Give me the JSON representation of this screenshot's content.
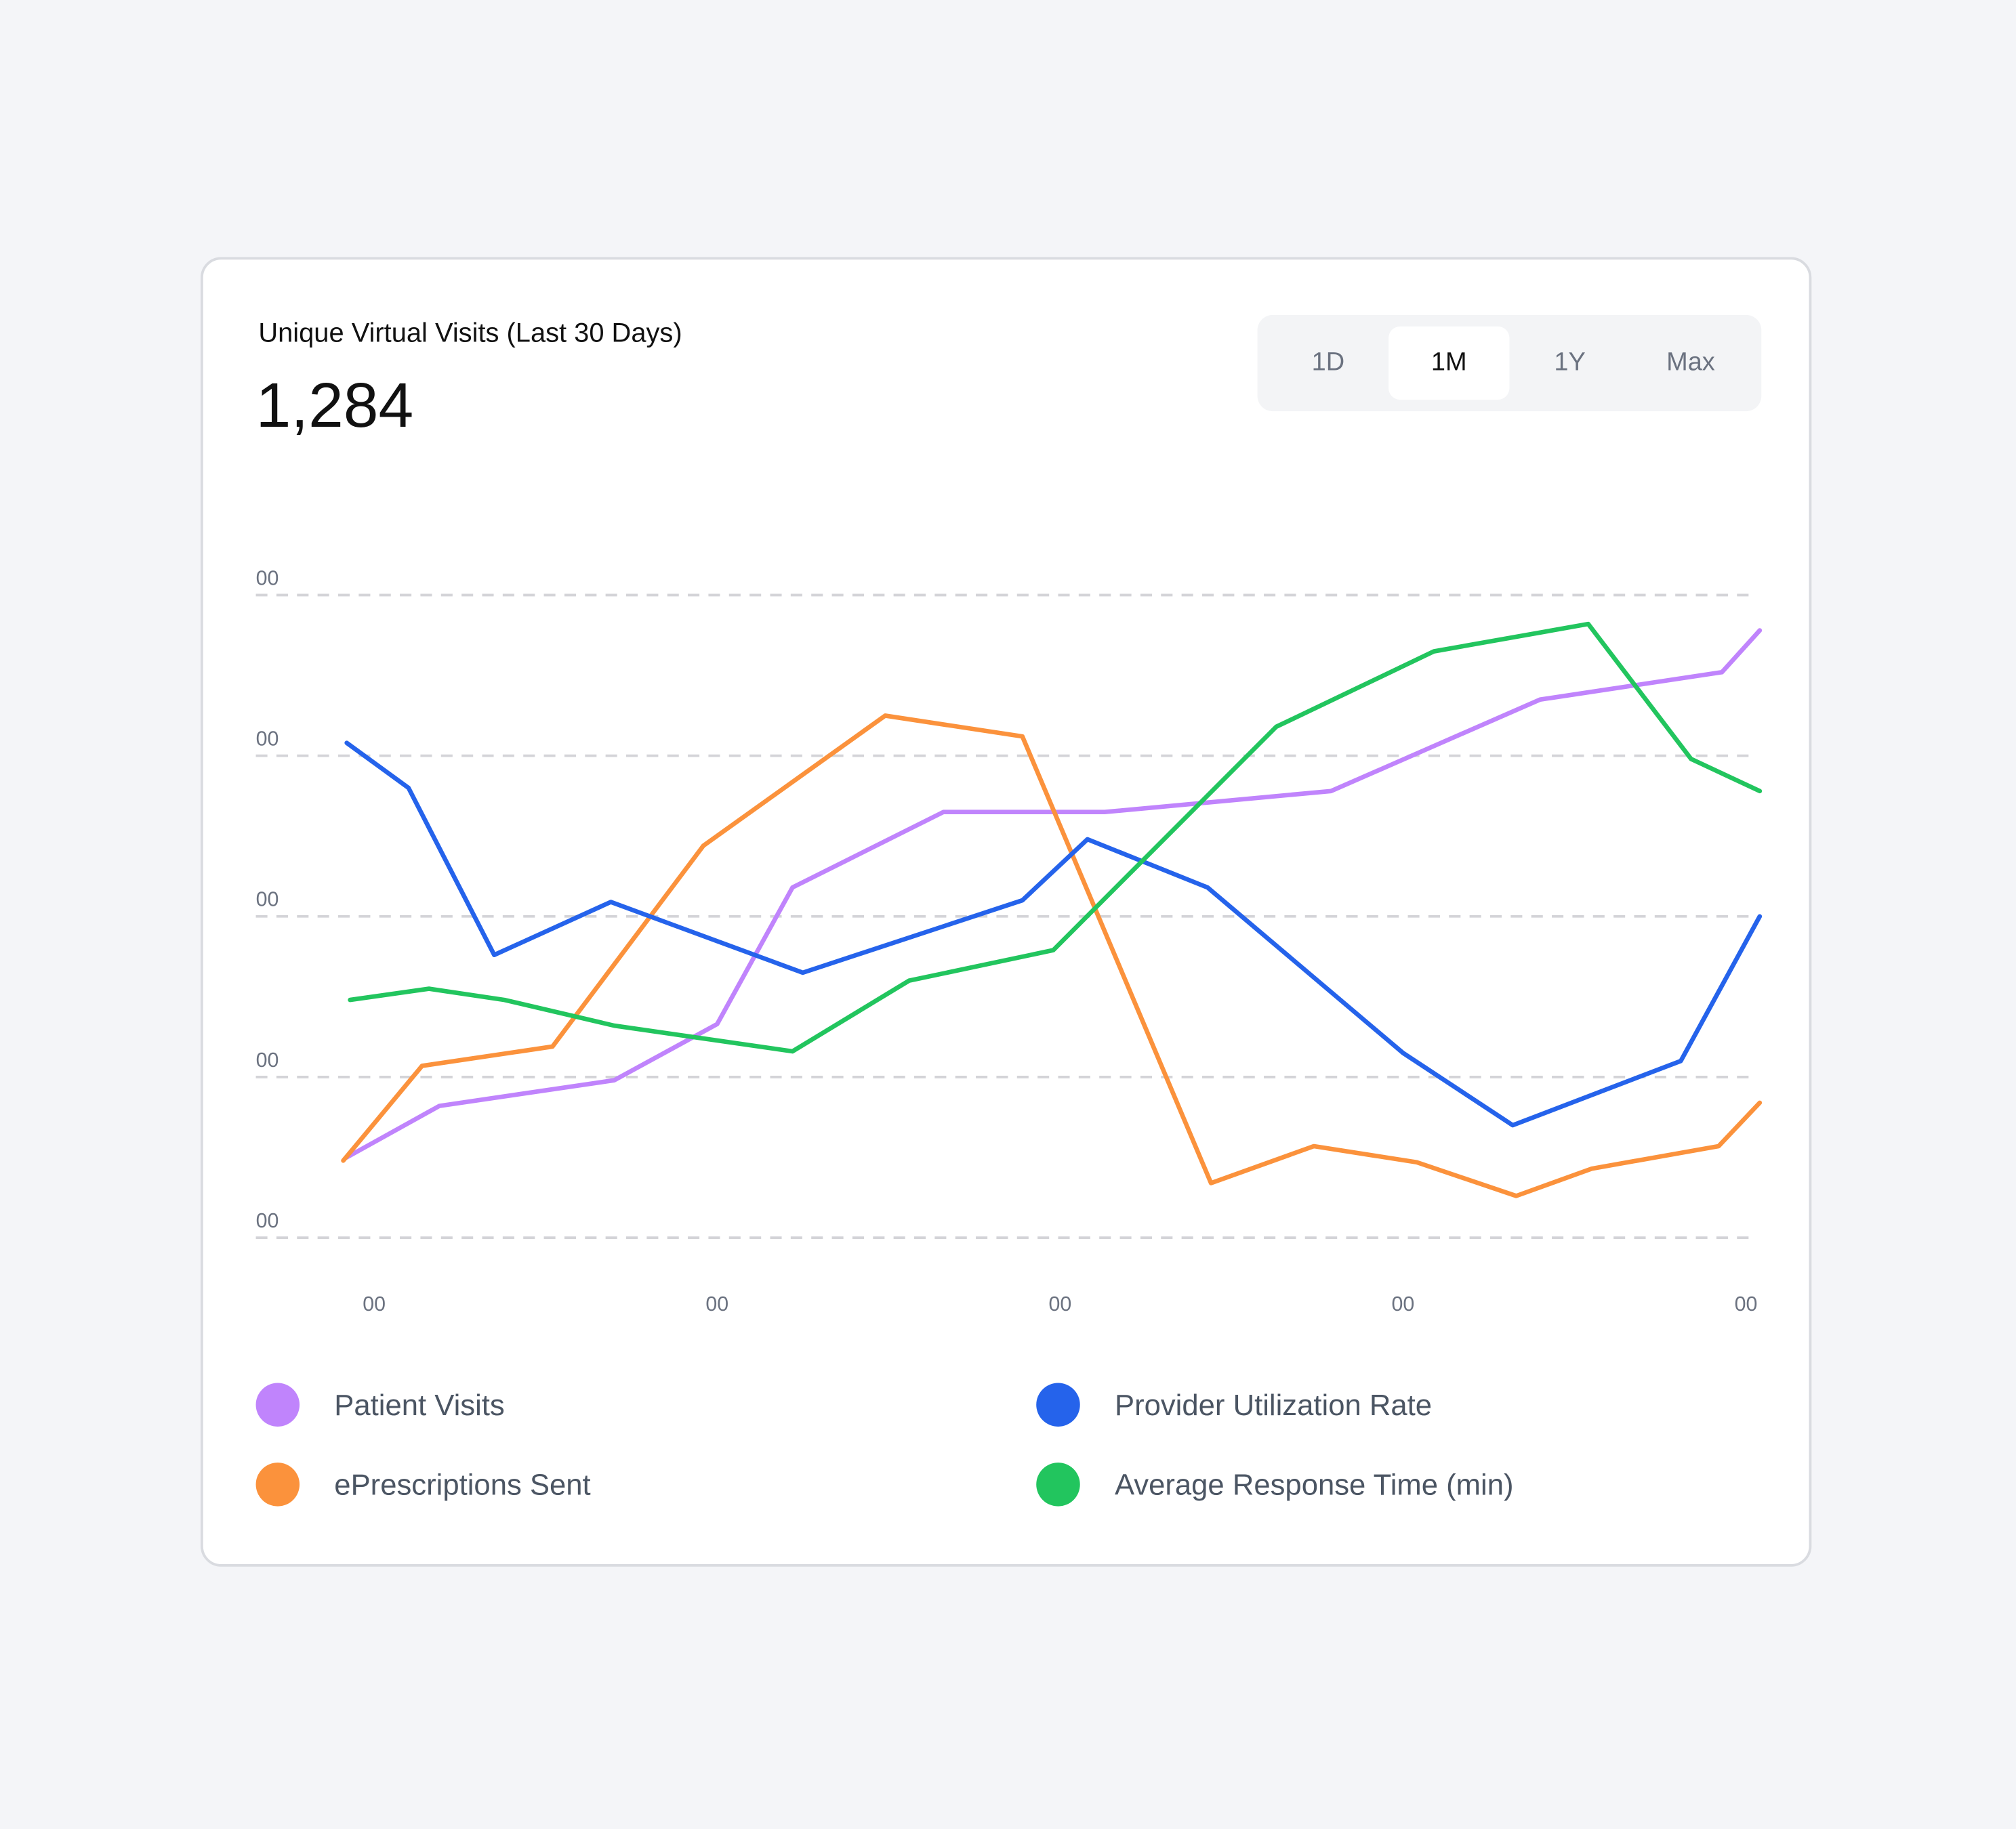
{
  "header": {
    "title": "Unique Virtual Visits (Last 30 Days)",
    "value": "1,284"
  },
  "range_selector": {
    "options": [
      "1D",
      "1M",
      "1Y",
      "Max"
    ],
    "selected": "1M"
  },
  "chart_data": {
    "type": "line",
    "y_tick_labels": [
      "00",
      "00",
      "00",
      "00",
      "00"
    ],
    "x_tick_labels": [
      "00",
      "00",
      "00",
      "00",
      "00"
    ],
    "ylim": [
      0,
      4
    ],
    "xlim": [
      0,
      4
    ],
    "grid": "horizontal dashed",
    "legend_placement": "bottom",
    "series": [
      {
        "name": "Patient Visits",
        "color": "#c084fc",
        "points": [
          [
            -0.08,
            0.5
          ],
          [
            0.19,
            0.82
          ],
          [
            0.7,
            0.98
          ],
          [
            1.0,
            1.33
          ],
          [
            1.22,
            2.18
          ],
          [
            1.66,
            2.65
          ],
          [
            2.13,
            2.65
          ],
          [
            2.79,
            2.78
          ],
          [
            3.4,
            3.35
          ],
          [
            3.93,
            3.52
          ],
          [
            4.04,
            3.78
          ]
        ]
      },
      {
        "name": "ePrescriptions Sent",
        "color": "#fb923c",
        "points": [
          [
            -0.09,
            0.48
          ],
          [
            0.14,
            1.07
          ],
          [
            0.52,
            1.19
          ],
          [
            0.96,
            2.44
          ],
          [
            1.49,
            3.25
          ],
          [
            1.89,
            3.12
          ],
          [
            2.44,
            0.34
          ],
          [
            2.74,
            0.57
          ],
          [
            3.04,
            0.47
          ],
          [
            3.33,
            0.26
          ],
          [
            3.55,
            0.43
          ],
          [
            3.92,
            0.57
          ],
          [
            4.04,
            0.84
          ]
        ]
      },
      {
        "name": "Provider Utilization Rate",
        "color": "#2563eb",
        "points": [
          [
            -0.08,
            3.08
          ],
          [
            0.1,
            2.8
          ],
          [
            0.35,
            1.76
          ],
          [
            0.69,
            2.09
          ],
          [
            1.25,
            1.65
          ],
          [
            1.89,
            2.1
          ],
          [
            2.08,
            2.48
          ],
          [
            2.43,
            2.18
          ],
          [
            3.0,
            1.15
          ],
          [
            3.32,
            0.7
          ],
          [
            3.81,
            1.1
          ],
          [
            4.04,
            2.0
          ]
        ]
      },
      {
        "name": "Average Response Time (min)",
        "color": "#22c55e",
        "points": [
          [
            -0.07,
            1.48
          ],
          [
            0.16,
            1.55
          ],
          [
            0.38,
            1.48
          ],
          [
            0.7,
            1.32
          ],
          [
            1.22,
            1.16
          ],
          [
            1.56,
            1.6
          ],
          [
            1.98,
            1.79
          ],
          [
            2.63,
            3.18
          ],
          [
            3.09,
            3.65
          ],
          [
            3.54,
            3.82
          ],
          [
            3.84,
            2.98
          ],
          [
            4.04,
            2.78
          ]
        ]
      }
    ]
  }
}
